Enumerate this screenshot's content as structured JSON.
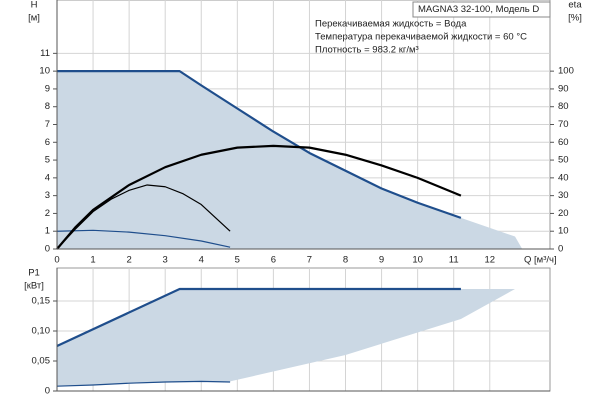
{
  "chart_data": [
    {
      "type": "line",
      "model": "MAGNA3 32-100, Модель D",
      "annotations": [
        "Перекачиваемая жидкость = Вода",
        "Температура перекачиваемой жидкости = 60 °C",
        "Плотность = 983.2 кг/м³"
      ],
      "ylabel": [
        "H",
        "[м]"
      ],
      "y2label": [
        "eta",
        "[%]"
      ],
      "xlabel": "Q [м³/ч]",
      "xlim": [
        0,
        13.67
      ],
      "xticks": [
        0,
        1,
        2,
        3,
        4,
        5,
        6,
        7,
        8,
        9,
        10,
        11,
        12
      ],
      "ylim": [
        0,
        14
      ],
      "yticks": [
        0,
        1,
        2,
        3,
        4,
        5,
        6,
        7,
        8,
        9,
        10,
        11
      ],
      "y2lim": [
        0,
        140
      ],
      "y2ticks": [
        0,
        10,
        20,
        30,
        40,
        50,
        60,
        70,
        80,
        90,
        100
      ],
      "grid": true,
      "series": [
        {
          "kind": "area",
          "color": "#cbd8e4",
          "x": [
            0,
            0,
            3.4,
            4,
            5,
            6,
            7,
            8,
            9,
            10,
            11.2,
            12.7,
            12.9
          ],
          "values": [
            0,
            10,
            10,
            9.2,
            7.9,
            6.6,
            5.4,
            4.4,
            3.4,
            2.6,
            1.75,
            0.7,
            0
          ]
        },
        {
          "kind": "line",
          "style": "bold",
          "color": "#1f4e8c",
          "x": [
            0,
            3.4,
            4,
            5,
            6,
            7,
            8,
            9,
            10,
            11.2
          ],
          "values": [
            10,
            10,
            9.2,
            7.9,
            6.6,
            5.4,
            4.4,
            3.4,
            2.6,
            1.75
          ]
        },
        {
          "kind": "line",
          "style": "thin",
          "color": "#1f4e8c",
          "x": [
            0,
            1,
            2,
            3,
            4,
            4.8
          ],
          "values": [
            1,
            1.05,
            0.95,
            0.75,
            0.45,
            0.1
          ]
        },
        {
          "kind": "line",
          "style": "bold",
          "color": "#000000",
          "axis": "y2",
          "x": [
            0,
            0.5,
            1,
            2,
            3,
            4,
            5,
            6,
            7,
            8,
            9,
            10,
            11.2
          ],
          "values": [
            0,
            12,
            22,
            36,
            46,
            53,
            57,
            58,
            57,
            53,
            47,
            40,
            30
          ]
        },
        {
          "kind": "line",
          "style": "thin",
          "color": "#000000",
          "axis": "y2",
          "x": [
            0,
            0.5,
            1,
            1.5,
            2,
            2.5,
            3,
            3.5,
            4,
            4.8
          ],
          "values": [
            0,
            11,
            21,
            28,
            33,
            36,
            35,
            31,
            25,
            10
          ]
        }
      ]
    },
    {
      "type": "line",
      "ylabel": [
        "P1",
        "[кВт]"
      ],
      "xlim": [
        0,
        13.67
      ],
      "ylim": [
        0,
        0.205
      ],
      "yticks": [
        0,
        {
          "value": 0.05,
          "label": "0,05"
        },
        {
          "value": 0.1,
          "label": "0,10"
        },
        {
          "value": 0.15,
          "label": "0,15"
        }
      ],
      "grid": true,
      "series": [
        {
          "kind": "area",
          "color": "#cbd8e4",
          "x": [
            0,
            3.4,
            4.8,
            8,
            11.2,
            12.7
          ],
          "values": [
            0.075,
            0.17,
            0.17,
            0.17,
            0.17,
            0.17
          ],
          "lower": [
            0.008,
            0.015,
            0.016,
            0.06,
            0.12,
            0.17
          ]
        },
        {
          "kind": "line",
          "style": "bold",
          "color": "#1f4e8c",
          "x": [
            0,
            3.4,
            11.2
          ],
          "values": [
            0.075,
            0.17,
            0.17
          ]
        },
        {
          "kind": "line",
          "style": "thin",
          "color": "#1f4e8c",
          "x": [
            0,
            1,
            2,
            3,
            4,
            4.8
          ],
          "values": [
            0.008,
            0.01,
            0.013,
            0.015,
            0.016,
            0.015
          ]
        }
      ]
    }
  ]
}
